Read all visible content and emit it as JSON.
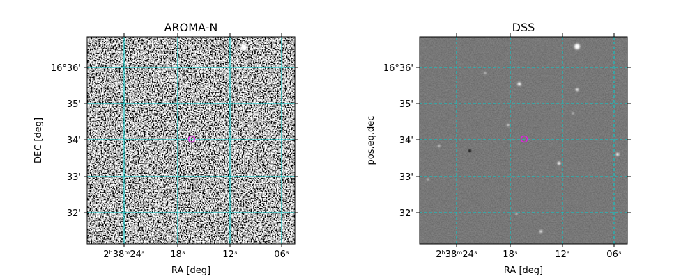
{
  "panels": [
    {
      "title": "AROMA-N",
      "xlabel": "RA [deg]",
      "ylabel": "DEC [deg]",
      "xticks": [
        "2ʰ38ᵐ24ˢ",
        "18ˢ",
        "12ˢ",
        "06ˢ"
      ],
      "yticks": [
        "16°36'",
        "35'",
        "34'",
        "33'",
        "32'"
      ]
    },
    {
      "title": "DSS",
      "xlabel": "RA [deg]",
      "ylabel": "pos.eq.dec",
      "xticks": [
        "2ʰ38ᵐ24ˢ",
        "18ˢ",
        "12ˢ",
        "06ˢ"
      ],
      "yticks": [
        "16°36'",
        "35'",
        "34'",
        "33'",
        "32'"
      ]
    }
  ]
}
